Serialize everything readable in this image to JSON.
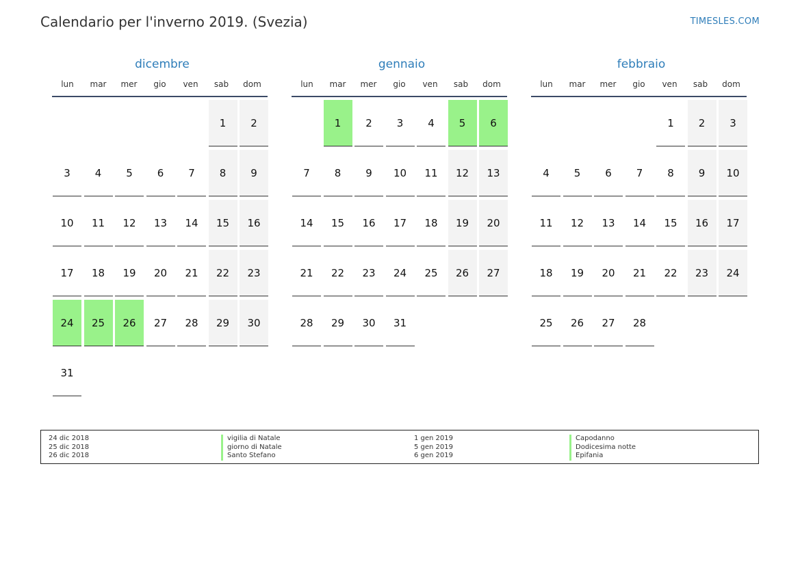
{
  "title": "Calendario per l'inverno 2019. (Svezia)",
  "site": "TIMESLES.COM",
  "colors": {
    "accent": "#2e7db9",
    "holiday": "#99f28a",
    "weekend": "#f3f3f3"
  },
  "weekdays": [
    "lun",
    "mar",
    "mer",
    "gio",
    "ven",
    "sab",
    "dom"
  ],
  "months": [
    {
      "name": "dicembre",
      "start_offset": 5,
      "days": 31,
      "holidays": [
        24,
        25,
        26
      ]
    },
    {
      "name": "gennaio",
      "start_offset": 1,
      "days": 31,
      "holidays": [
        1,
        5,
        6
      ]
    },
    {
      "name": "febbraio",
      "start_offset": 4,
      "days": 28,
      "holidays": []
    }
  ],
  "legend": {
    "left_dates": [
      "24 dic 2018",
      "25 dic 2018",
      "26 dic 2018"
    ],
    "left_names": [
      "vigilia di Natale",
      "giorno di Natale",
      "Santo Stefano"
    ],
    "right_dates": [
      "1 gen 2019",
      "5 gen 2019",
      "6 gen 2019"
    ],
    "right_names": [
      "Capodanno",
      "Dodicesima notte",
      "Epifania"
    ]
  }
}
